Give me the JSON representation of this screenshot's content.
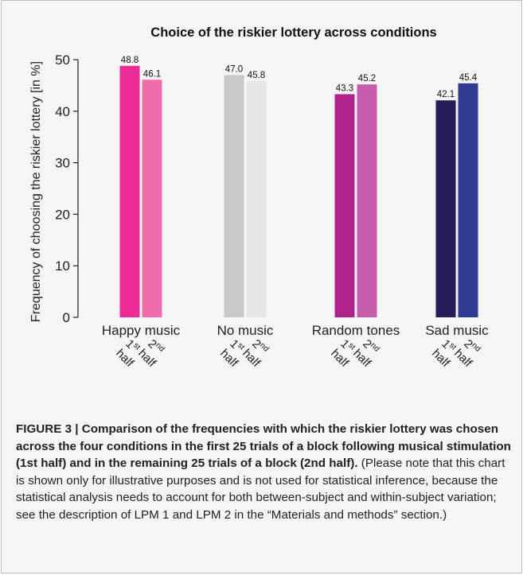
{
  "chart_data": {
    "type": "bar",
    "title": "Choice of the riskier lottery across conditions",
    "ylabel": "Frequency of choosing the riskier lottery [in %]",
    "xlabel": "",
    "ylim": [
      0,
      50
    ],
    "yticks": [
      "0",
      "10",
      "20",
      "30",
      "40",
      "50"
    ],
    "grid": false,
    "categories": [
      "Happy music",
      "No music",
      "Random tones",
      "Sad music"
    ],
    "series": [
      {
        "name": "1st half",
        "values": [
          48.8,
          47.0,
          43.3,
          42.1
        ],
        "labels": [
          "48.8",
          "47.0",
          "43.3",
          "42.1"
        ],
        "colors": [
          "#ec2b94",
          "#c8c8c6",
          "#b0238c",
          "#231d5a"
        ]
      },
      {
        "name": "2nd half",
        "values": [
          46.1,
          45.8,
          45.2,
          45.4
        ],
        "labels": [
          "46.1",
          "45.8",
          "45.2",
          "45.4"
        ],
        "colors": [
          "#ef6bab",
          "#e6e6e6",
          "#c65cab",
          "#2f3a93"
        ]
      }
    ],
    "half_labels": [
      {
        "num": "1",
        "sup": "st",
        "word": "half"
      },
      {
        "num": "2",
        "sup": "nd",
        "word": "half"
      }
    ]
  },
  "caption": {
    "bold": "FIGURE 3 | Comparison of the frequencies with which the riskier lottery was chosen across the four conditions in the first 25 trials of a block following musical stimulation (1st half) and in the remaining 25 trials of a block (2nd half).",
    "rest": " (Please note that this chart is shown only for illustrative purposes and is not used for statistical inference, because the statistical analysis needs to account for both between-subject and within-subject variation; see the description of LPM 1 and LPM 2 in the “Materials and methods” section.)"
  }
}
